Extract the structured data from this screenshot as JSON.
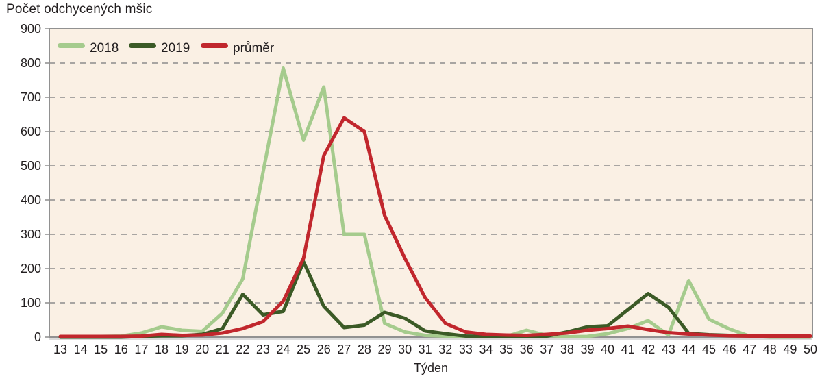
{
  "figure": {
    "title": "Počet odchycených mšic",
    "x_axis_title": "Týden"
  },
  "colors": {
    "series_2018": "#a5cb8d",
    "series_2019": "#3b5a26",
    "series_avg": "#c1272d",
    "plot_background": "#faf0e4",
    "grid": "#8c8c8c",
    "border": "#919191",
    "text": "#231f20"
  },
  "chart_data": {
    "type": "line",
    "title": "Počet odchycených mšic",
    "xlabel": "Týden",
    "ylabel": "Počet odchycených mšic",
    "ylim": [
      0,
      900
    ],
    "yticks": [
      0,
      100,
      200,
      300,
      400,
      500,
      600,
      700,
      800,
      900
    ],
    "grid": "horizontal dashed",
    "legend_position": "top-left inside",
    "x": [
      13,
      14,
      15,
      16,
      17,
      18,
      19,
      20,
      21,
      22,
      23,
      24,
      25,
      26,
      27,
      28,
      29,
      30,
      31,
      32,
      33,
      34,
      35,
      36,
      37,
      38,
      39,
      40,
      41,
      42,
      43,
      44,
      45,
      46,
      47,
      48,
      49,
      50
    ],
    "series": [
      {
        "name": "2018",
        "color": "#a5cb8d",
        "values": [
          0,
          0,
          2,
          3,
          12,
          30,
          20,
          17,
          70,
          170,
          480,
          785,
          575,
          730,
          300,
          300,
          40,
          15,
          5,
          3,
          2,
          1,
          2,
          20,
          5,
          1,
          2,
          10,
          25,
          48,
          6,
          165,
          52,
          24,
          3,
          0,
          0,
          0
        ]
      },
      {
        "name": "2019",
        "color": "#3b5a26",
        "values": [
          0,
          0,
          0,
          0,
          2,
          4,
          4,
          8,
          25,
          125,
          65,
          75,
          220,
          90,
          28,
          35,
          72,
          55,
          18,
          10,
          3,
          2,
          2,
          3,
          3,
          15,
          30,
          33,
          80,
          127,
          87,
          11,
          7,
          5,
          null,
          null,
          null,
          null
        ]
      },
      {
        "name": "průměr",
        "color": "#c1272d",
        "values": [
          2,
          2,
          2,
          2,
          3,
          8,
          5,
          6,
          12,
          25,
          45,
          105,
          230,
          530,
          640,
          600,
          355,
          230,
          115,
          40,
          15,
          8,
          6,
          5,
          8,
          12,
          20,
          25,
          32,
          22,
          13,
          9,
          6,
          4,
          3,
          3,
          3,
          3
        ]
      }
    ]
  }
}
